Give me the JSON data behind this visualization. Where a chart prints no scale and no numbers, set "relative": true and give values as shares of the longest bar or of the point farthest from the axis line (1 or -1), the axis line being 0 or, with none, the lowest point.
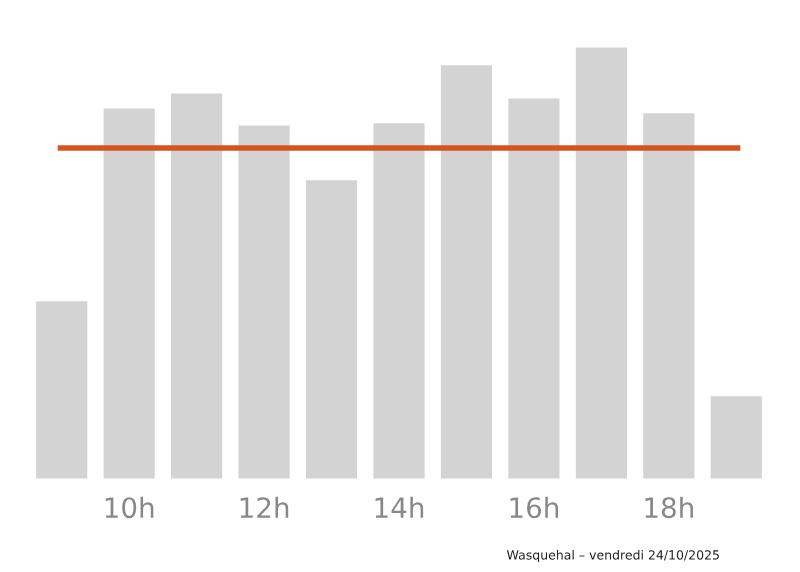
{
  "chart_data": {
    "type": "bar",
    "relative": true,
    "categories": [
      null,
      "10h",
      null,
      "12h",
      null,
      "14h",
      null,
      "16h",
      null,
      "18h",
      null
    ],
    "values": [
      0.415,
      0.859,
      0.894,
      0.82,
      0.694,
      0.825,
      0.959,
      0.882,
      1,
      0.848,
      0.196
    ],
    "color": "#d3d3d3",
    "ref_lines": [
      {
        "axis": "y",
        "value": 0.765,
        "color": "#d3541c",
        "line_style": "solid"
      }
    ],
    "annotations": [
      "Wasquehal – vendredi 24/10/2025"
    ],
    "grid": false,
    "legend": false
  }
}
